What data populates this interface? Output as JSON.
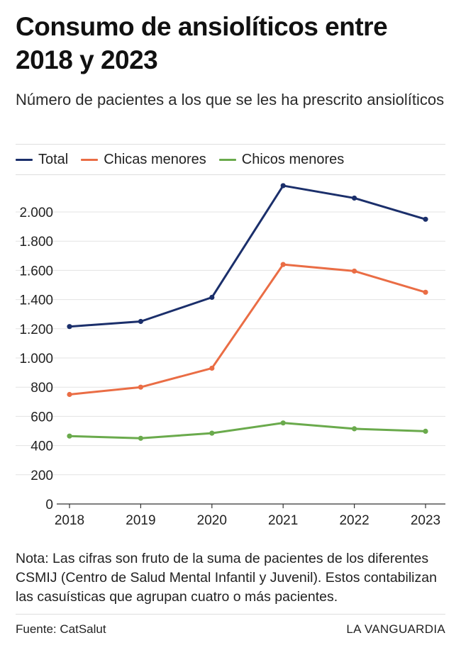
{
  "header": {
    "title": "Consumo de ansiolíticos entre 2018 y 2023",
    "subtitle": "Número de pacientes a los que se les ha prescrito ansiolíticos"
  },
  "chart_data": {
    "type": "line",
    "title": "Consumo de ansiolíticos entre 2018 y 2023",
    "subtitle": "Número de pacientes a los que se les ha prescrito ansiolíticos",
    "xlabel": "",
    "ylabel": "",
    "x": [
      "2018",
      "2019",
      "2020",
      "2021",
      "2022",
      "2023"
    ],
    "ylim": [
      0,
      2200
    ],
    "yticks": [
      0,
      200,
      400,
      600,
      800,
      1000,
      1200,
      1400,
      1600,
      1800,
      2000
    ],
    "ytick_labels": [
      "0",
      "200",
      "400",
      "600",
      "800",
      "1.000",
      "1.200",
      "1.400",
      "1.600",
      "1.800",
      "2.000"
    ],
    "grid": true,
    "legend_position": "top-left",
    "series": [
      {
        "name": "Total",
        "color": "#1b2f6b",
        "values": [
          1215,
          1250,
          1415,
          2180,
          2095,
          1950
        ]
      },
      {
        "name": "Chicas menores",
        "color": "#ea6d45",
        "values": [
          750,
          800,
          930,
          1640,
          1595,
          1450
        ]
      },
      {
        "name": "Chicos menores",
        "color": "#6aaa4c",
        "values": [
          465,
          450,
          485,
          555,
          515,
          498
        ]
      }
    ]
  },
  "footer": {
    "note": "Nota: Las cifras son fruto de la suma de pacientes de los diferentes CSMIJ (Centro de Salud Mental Infantil y Juvenil). Estos contabilizan las casuísticas que agrupan cuatro o más pacientes.",
    "source": "Fuente: CatSalut",
    "brand": "LA VANGUARDIA"
  }
}
